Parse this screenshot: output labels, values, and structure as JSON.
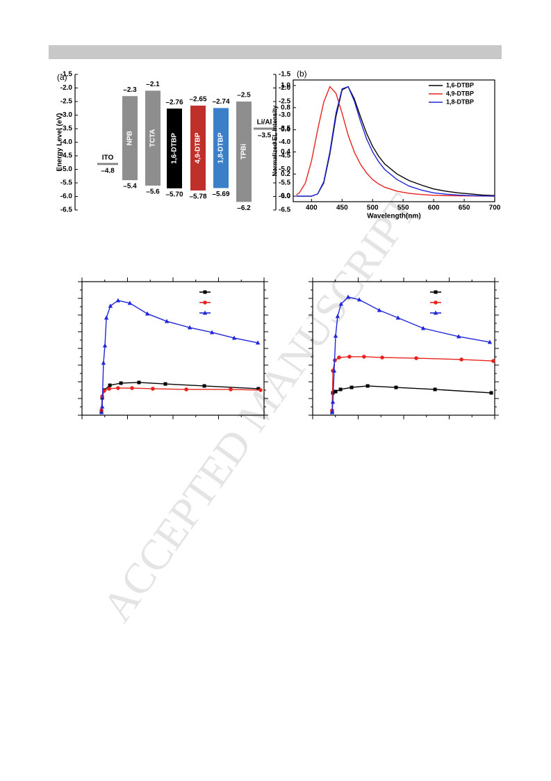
{
  "watermark": "ACCEPTED MANUSCRIPT",
  "chart_data": [
    {
      "type": "energy_level",
      "panel_label": "(a)",
      "ylabel": "Energy Level (eV)",
      "ylim": [
        -6.5,
        -1.5
      ],
      "yticks": [
        -1.5,
        {
          "value": -2,
          "label": "-2.0"
        },
        -2.5,
        {
          "value": -3,
          "label": "-3.0"
        },
        -3.5,
        {
          "value": -4,
          "label": "-4.0"
        },
        -4.5,
        {
          "value": -5,
          "label": "-5.0"
        },
        -5.5,
        {
          "value": -6,
          "label": "-6.0"
        },
        -6.5
      ],
      "y2lim": [
        -6.5,
        -1.5
      ],
      "y2ticks": [
        -1.5,
        {
          "value": -2,
          "label": "-2.0"
        },
        -2.5,
        {
          "value": -3,
          "label": "-3.0"
        },
        -3.5,
        {
          "value": -4,
          "label": "-4.0"
        },
        -4.5,
        {
          "value": -5,
          "label": "-5.0"
        },
        -5.5,
        {
          "value": -6,
          "label": "-6.0"
        },
        -6.5
      ],
      "electrodes": [
        {
          "name": "ITO",
          "values": [
            -4.8
          ],
          "value_labels": [
            "–4.8"
          ]
        },
        {
          "name": "Li/Al",
          "values": [
            -3.5
          ],
          "value_labels": [
            "–3.5"
          ]
        }
      ],
      "layers": [
        {
          "name": "NPB",
          "color": "#8e8e8e",
          "values": [
            -2.3,
            -5.4
          ],
          "value_labels": [
            "–2.3",
            "–5.4"
          ]
        },
        {
          "name": "TCTA",
          "color": "#8e8e8e",
          "values": [
            -2.1,
            -5.6
          ],
          "value_labels": [
            "–2.1",
            "–5.6"
          ]
        },
        {
          "name": "1,6-DTBP",
          "color": "#000000",
          "values": [
            -2.76,
            -5.7
          ],
          "value_labels": [
            "–2.76",
            "–5.70"
          ]
        },
        {
          "name": "4,9-DTBP",
          "color": "#c0302a",
          "values": [
            -2.65,
            -5.78
          ],
          "value_labels": [
            "–2.65",
            "–5.78"
          ]
        },
        {
          "name": "1,8-DTBP",
          "color": "#3a7fc8",
          "values": [
            -2.74,
            -5.69
          ],
          "value_labels": [
            "–2.74",
            "–5.69"
          ]
        },
        {
          "name": "TPBi",
          "color": "#8e8e8e",
          "values": [
            -2.5,
            -6.2
          ],
          "value_labels": [
            "–2.5",
            "–6.2"
          ]
        }
      ]
    },
    {
      "type": "line",
      "panel_label": "(b)",
      "xlabel": "Wavelength(nm)",
      "ylabel": "Normalized EL Intensity",
      "xlim": [
        370,
        700
      ],
      "xticks": [
        400,
        450,
        500,
        550,
        600,
        650,
        700
      ],
      "ylim": [
        -0.05,
        1.05
      ],
      "yticks": [
        {
          "value": 0,
          "label": "0.0"
        },
        0.2,
        0.4,
        0.6,
        0.8,
        {
          "value": 1,
          "label": "1.0"
        }
      ],
      "legend": "upper right",
      "x": [
        375,
        380,
        390,
        400,
        410,
        420,
        430,
        440,
        450,
        460,
        470,
        480,
        490,
        500,
        510,
        520,
        540,
        560,
        580,
        600,
        620,
        640,
        660,
        680,
        700
      ],
      "series": [
        {
          "name": "1,6-DTBP",
          "color": "#000000",
          "values": [
            0,
            0,
            0,
            0,
            0.02,
            0.12,
            0.38,
            0.72,
            0.96,
            0.99,
            0.88,
            0.72,
            0.57,
            0.45,
            0.36,
            0.29,
            0.2,
            0.14,
            0.1,
            0.065,
            0.045,
            0.03,
            0.02,
            0.01,
            0.005
          ]
        },
        {
          "name": "4,9-DTBP",
          "color": "#e8221c",
          "values": [
            0.01,
            0.03,
            0.12,
            0.32,
            0.6,
            0.85,
            0.99,
            0.93,
            0.75,
            0.55,
            0.4,
            0.29,
            0.21,
            0.15,
            0.11,
            0.08,
            0.045,
            0.025,
            0.015,
            0.008,
            0.005,
            0.003,
            0.002,
            0.001,
            0
          ]
        },
        {
          "name": "1,8-DTBP",
          "color": "#1f25d8",
          "values": [
            0,
            0,
            0,
            0,
            0.02,
            0.13,
            0.4,
            0.75,
            0.97,
            0.99,
            0.86,
            0.68,
            0.52,
            0.4,
            0.31,
            0.24,
            0.15,
            0.09,
            0.055,
            0.03,
            0.018,
            0.01,
            0.005,
            0.002,
            0
          ]
        }
      ]
    },
    {
      "type": "line",
      "xlim": [
        0,
        100
      ],
      "ylim": [
        0,
        100
      ],
      "legend": "upper right",
      "series": [
        {
          "color": "#000000",
          "marker": "square",
          "x": [
            10.7,
            11.1,
            12.2,
            15.3,
            21.4,
            31.3,
            45.8,
            67.2,
            96.9
          ],
          "values": [
            2.6,
            13.0,
            18.8,
            22.4,
            24.0,
            24.5,
            23.4,
            21.9,
            19.8
          ]
        },
        {
          "color": "#e8221c",
          "marker": "circle",
          "x": [
            10.7,
            11.1,
            12.2,
            14.9,
            19.8,
            27.5,
            38.9,
            57.3,
            81.7,
            98.1
          ],
          "values": [
            3.6,
            14.1,
            18.2,
            19.8,
            20.3,
            20.3,
            19.8,
            19.3,
            19.3,
            18.8
          ]
        },
        {
          "color": "#1f25d8",
          "marker": "triangle",
          "x": [
            10.7,
            11.1,
            11.8,
            12.6,
            13.4,
            15.6,
            19.8,
            26.3,
            35.9,
            46.6,
            59.2,
            71.4,
            83.6,
            96.6
          ],
          "values": [
            2.1,
            6.3,
            39.1,
            52.1,
            72.9,
            81.8,
            85.9,
            83.9,
            76.0,
            70.3,
            65.6,
            62.0,
            57.8,
            54.2
          ]
        }
      ]
    },
    {
      "type": "line",
      "xlim": [
        0,
        100
      ],
      "ylim": [
        0,
        100
      ],
      "legend": "upper right",
      "series": [
        {
          "color": "#000000",
          "marker": "square",
          "x": [
            10.7,
            11.1,
            12.6,
            15.3,
            21.4,
            30.2,
            45.8,
            67.2,
            98.1
          ],
          "values": [
            2.6,
            16.7,
            17.7,
            19.3,
            20.8,
            21.9,
            20.8,
            19.3,
            16.7
          ]
        },
        {
          "color": "#e8221c",
          "marker": "circle",
          "x": [
            10.7,
            11.1,
            12.2,
            14.5,
            20.2,
            28.2,
            38.2,
            56.9,
            81.7,
            99.2
          ],
          "values": [
            3.6,
            33.3,
            41.1,
            43.2,
            43.8,
            43.8,
            43.2,
            42.7,
            41.7,
            40.6
          ]
        },
        {
          "color": "#1f25d8",
          "marker": "triangle",
          "x": [
            10.7,
            11.1,
            11.8,
            12.6,
            13.7,
            15.6,
            19.5,
            25.6,
            36.6,
            46.9,
            60.7,
            80.2,
            97.3
          ],
          "values": [
            2.1,
            9.9,
            33.3,
            59.4,
            74.0,
            83.3,
            88.5,
            86.5,
            78.6,
            72.9,
            65.1,
            58.9,
            54.7
          ]
        }
      ]
    }
  ]
}
